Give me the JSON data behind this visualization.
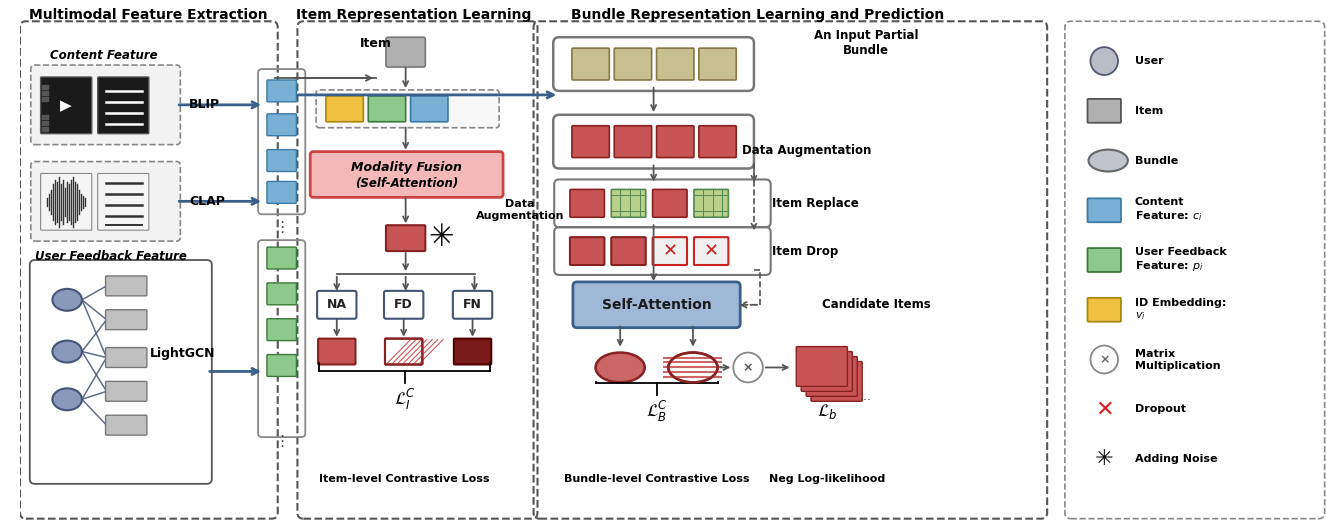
{
  "bg_color": "#ffffff",
  "section_titles": [
    "Multimodal Feature Extraction",
    "Item Representation Learning",
    "Bundle Representation Learning and Prediction"
  ],
  "colors": {
    "blue_arrow": "#3a5f8a",
    "gray_box": "#aaaaaa",
    "blue_feat": "#7ab0d4",
    "green_feat": "#8dc88d",
    "yellow_feat": "#f0c040",
    "red_feat": "#c85555",
    "dark_red": "#8b2020",
    "pink_box": "#f5b8b8",
    "olive": "#c8c090",
    "self_attn_blue": "#a0b8d8"
  }
}
